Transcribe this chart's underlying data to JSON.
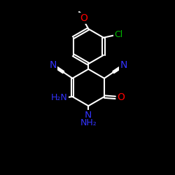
{
  "bg_color": "#000000",
  "bond_color": "#ffffff",
  "N_color": "#3333ff",
  "O_color": "#ff0000",
  "Cl_color": "#00bb00",
  "bond_width": 1.5,
  "fig_width": 2.5,
  "fig_height": 2.5,
  "dpi": 100,
  "xlim": [
    0,
    10
  ],
  "ylim": [
    0,
    10
  ]
}
